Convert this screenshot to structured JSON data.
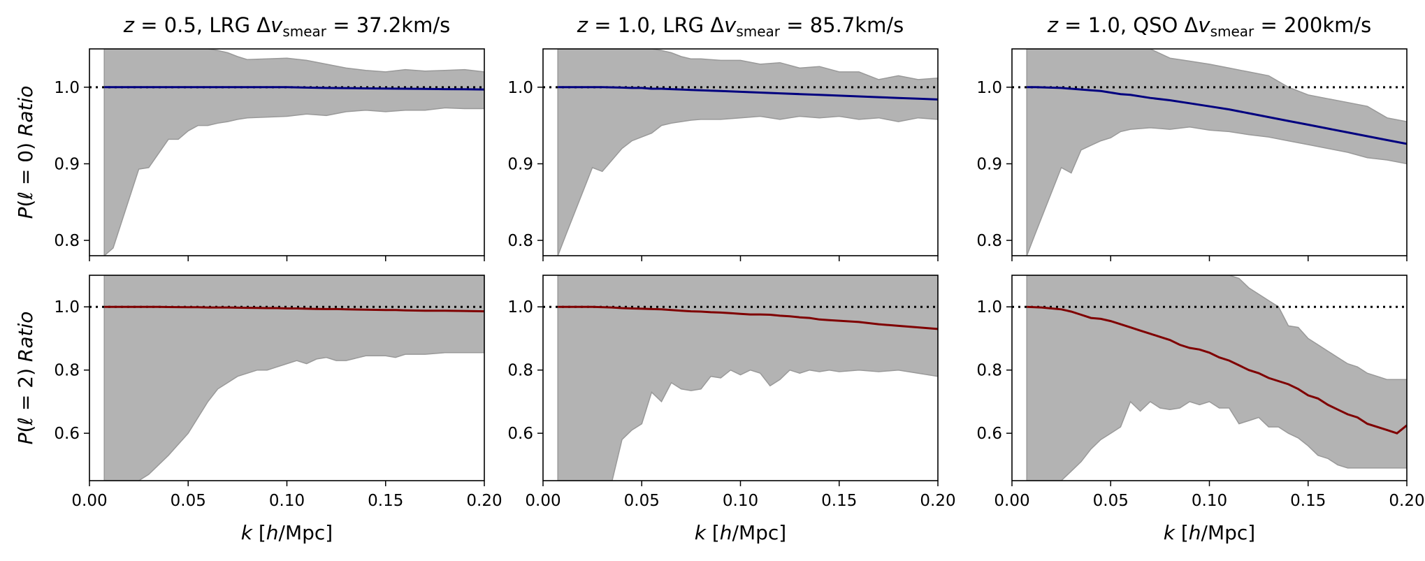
{
  "colors": {
    "band": "#b3b3b3",
    "band_edge": "#999999",
    "monopole_line": "#00007f",
    "quadrupole_line": "#7f0000",
    "reference_line": "#000000"
  },
  "chart_data": {
    "type": "line",
    "grid": false,
    "legend": "none",
    "x_label": {
      "var": "k",
      "rest": "[h/Mpc]"
    },
    "rows": [
      {
        "ylabel": {
          "pre": "P(",
          "var": "ℓ",
          "post": " = 0) Ratio"
        },
        "ylim": [
          0.78,
          1.05
        ],
        "yticks": [
          "0.8",
          "0.9",
          "1.0"
        ],
        "ytick_values": [
          0.8,
          0.9,
          1.0
        ]
      },
      {
        "ylabel": {
          "pre": "P(",
          "var": "ℓ",
          "post": " = 2) Ratio"
        },
        "ylim": [
          0.45,
          1.1
        ],
        "yticks": [
          "0.6",
          "0.8",
          "1.0"
        ],
        "ytick_values": [
          0.6,
          0.8,
          1.0
        ]
      }
    ],
    "xlim": [
      0.0,
      0.2
    ],
    "xticks": [
      "0.00",
      "0.05",
      "0.10",
      "0.15",
      "0.20"
    ],
    "xtick_values": [
      0.0,
      0.05,
      0.1,
      0.15,
      0.2
    ],
    "reference_value": 1.0,
    "columns": [
      {
        "title": {
          "z": "z = 0.5,",
          "tracer": "LRG",
          "dv": "Δv",
          "sub": "smear",
          "val": " = 37.2km/s"
        },
        "panels": [
          {
            "x": [
              0.0075,
              0.012,
              0.025,
              0.03,
              0.04,
              0.045,
              0.05,
              0.055,
              0.06,
              0.065,
              0.07,
              0.075,
              0.08,
              0.09,
              0.1,
              0.11,
              0.12,
              0.13,
              0.14,
              0.15,
              0.16,
              0.17,
              0.18,
              0.19,
              0.2
            ],
            "y": [
              1.0,
              1.0,
              1.0,
              1.0,
              1.0,
              1.0,
              1.0,
              1.0,
              1.0,
              1.0,
              1.0,
              1.0,
              1.0,
              1.0,
              1.0,
              0.9995,
              0.999,
              0.9988,
              0.9985,
              0.9982,
              0.998,
              0.9978,
              0.9975,
              0.9973,
              0.997
            ],
            "lower": [
              0.78,
              0.79,
              0.893,
              0.895,
              0.932,
              0.932,
              0.943,
              0.95,
              0.95,
              0.953,
              0.955,
              0.958,
              0.96,
              0.961,
              0.962,
              0.965,
              0.963,
              0.968,
              0.97,
              0.968,
              0.97,
              0.97,
              0.973,
              0.972,
              0.972
            ],
            "upper": [
              1.05,
              1.05,
              1.05,
              1.05,
              1.05,
              1.05,
              1.05,
              1.05,
              1.05,
              1.048,
              1.045,
              1.04,
              1.036,
              1.037,
              1.038,
              1.035,
              1.03,
              1.025,
              1.022,
              1.02,
              1.023,
              1.021,
              1.022,
              1.023,
              1.02
            ]
          },
          {
            "x": [
              0.0075,
              0.015,
              0.025,
              0.03,
              0.035,
              0.04,
              0.05,
              0.055,
              0.06,
              0.065,
              0.07,
              0.075,
              0.08,
              0.085,
              0.09,
              0.095,
              0.1,
              0.105,
              0.11,
              0.115,
              0.12,
              0.125,
              0.13,
              0.14,
              0.15,
              0.155,
              0.16,
              0.17,
              0.18,
              0.19,
              0.2
            ],
            "y": [
              1.0,
              1.0,
              1.0,
              1.0,
              1.0,
              0.9995,
              0.999,
              0.999,
              0.998,
              0.998,
              0.998,
              0.9975,
              0.997,
              0.9965,
              0.996,
              0.996,
              0.995,
              0.995,
              0.994,
              0.9935,
              0.993,
              0.993,
              0.992,
              0.991,
              0.99,
              0.99,
              0.989,
              0.988,
              0.988,
              0.987,
              0.986
            ],
            "lower": [
              0.45,
              0.45,
              0.45,
              0.47,
              0.5,
              0.53,
              0.6,
              0.65,
              0.7,
              0.74,
              0.76,
              0.78,
              0.79,
              0.8,
              0.8,
              0.81,
              0.82,
              0.83,
              0.82,
              0.835,
              0.84,
              0.83,
              0.83,
              0.845,
              0.845,
              0.84,
              0.85,
              0.85,
              0.855,
              0.855,
              0.855
            ],
            "upper": [
              1.1,
              1.1,
              1.1,
              1.1,
              1.1,
              1.1,
              1.1,
              1.1,
              1.1,
              1.1,
              1.1,
              1.1,
              1.1,
              1.1,
              1.1,
              1.1,
              1.1,
              1.1,
              1.1,
              1.1,
              1.1,
              1.1,
              1.1,
              1.1,
              1.1,
              1.1,
              1.1,
              1.1,
              1.1,
              1.1,
              1.1
            ]
          }
        ]
      },
      {
        "title": {
          "z": "z = 1.0,",
          "tracer": "LRG",
          "dv": "Δv",
          "sub": "smear",
          "val": " = 85.7km/s"
        },
        "panels": [
          {
            "x": [
              0.0075,
              0.012,
              0.025,
              0.03,
              0.04,
              0.045,
              0.05,
              0.055,
              0.06,
              0.065,
              0.07,
              0.075,
              0.08,
              0.09,
              0.1,
              0.11,
              0.12,
              0.13,
              0.14,
              0.15,
              0.16,
              0.17,
              0.18,
              0.19,
              0.2
            ],
            "y": [
              1.0,
              1.0,
              1.0,
              1.0,
              0.9995,
              0.999,
              0.999,
              0.998,
              0.998,
              0.9975,
              0.997,
              0.9965,
              0.996,
              0.995,
              0.994,
              0.993,
              0.992,
              0.991,
              0.99,
              0.989,
              0.988,
              0.987,
              0.986,
              0.985,
              0.984
            ],
            "lower": [
              0.78,
              0.81,
              0.895,
              0.89,
              0.92,
              0.93,
              0.935,
              0.94,
              0.95,
              0.953,
              0.955,
              0.957,
              0.958,
              0.958,
              0.96,
              0.962,
              0.958,
              0.962,
              0.96,
              0.962,
              0.958,
              0.96,
              0.955,
              0.96,
              0.958
            ],
            "upper": [
              1.05,
              1.05,
              1.05,
              1.05,
              1.05,
              1.05,
              1.05,
              1.05,
              1.048,
              1.045,
              1.04,
              1.037,
              1.037,
              1.035,
              1.035,
              1.03,
              1.032,
              1.025,
              1.027,
              1.02,
              1.02,
              1.01,
              1.015,
              1.01,
              1.012
            ]
          },
          {
            "x": [
              0.0075,
              0.015,
              0.025,
              0.035,
              0.04,
              0.045,
              0.05,
              0.055,
              0.06,
              0.065,
              0.07,
              0.075,
              0.08,
              0.085,
              0.09,
              0.095,
              0.1,
              0.105,
              0.11,
              0.115,
              0.12,
              0.125,
              0.13,
              0.135,
              0.14,
              0.145,
              0.15,
              0.16,
              0.17,
              0.18,
              0.19,
              0.2
            ],
            "y": [
              1.0,
              1.0,
              1.0,
              0.998,
              0.996,
              0.995,
              0.994,
              0.993,
              0.992,
              0.99,
              0.988,
              0.986,
              0.985,
              0.983,
              0.982,
              0.98,
              0.978,
              0.976,
              0.976,
              0.975,
              0.972,
              0.97,
              0.967,
              0.965,
              0.96,
              0.958,
              0.956,
              0.952,
              0.945,
              0.94,
              0.935,
              0.93
            ],
            "lower": [
              0.45,
              0.45,
              0.45,
              0.45,
              0.58,
              0.61,
              0.63,
              0.73,
              0.7,
              0.76,
              0.74,
              0.735,
              0.74,
              0.78,
              0.775,
              0.8,
              0.785,
              0.8,
              0.79,
              0.75,
              0.77,
              0.8,
              0.79,
              0.8,
              0.795,
              0.8,
              0.795,
              0.8,
              0.795,
              0.8,
              0.79,
              0.78
            ],
            "upper": [
              1.1,
              1.1,
              1.1,
              1.1,
              1.1,
              1.1,
              1.1,
              1.1,
              1.1,
              1.1,
              1.1,
              1.1,
              1.1,
              1.1,
              1.1,
              1.1,
              1.1,
              1.1,
              1.1,
              1.1,
              1.1,
              1.1,
              1.1,
              1.1,
              1.1,
              1.1,
              1.1,
              1.1,
              1.1,
              1.1,
              1.1,
              1.1
            ]
          }
        ]
      },
      {
        "title": {
          "z": "z = 1.0,",
          "tracer": "QSO",
          "dv": "Δv",
          "sub": "smear",
          "val": " = 200km/s"
        },
        "panels": [
          {
            "x": [
              0.0075,
              0.012,
              0.025,
              0.03,
              0.035,
              0.04,
              0.045,
              0.05,
              0.055,
              0.06,
              0.07,
              0.08,
              0.09,
              0.1,
              0.11,
              0.12,
              0.13,
              0.14,
              0.15,
              0.16,
              0.17,
              0.18,
              0.19,
              0.2
            ],
            "y": [
              1.0,
              1.0,
              0.999,
              0.998,
              0.997,
              0.996,
              0.995,
              0.993,
              0.991,
              0.99,
              0.986,
              0.983,
              0.979,
              0.975,
              0.971,
              0.966,
              0.961,
              0.956,
              0.951,
              0.946,
              0.941,
              0.936,
              0.931,
              0.926
            ],
            "lower": [
              0.78,
              0.81,
              0.895,
              0.888,
              0.918,
              0.924,
              0.93,
              0.934,
              0.942,
              0.945,
              0.947,
              0.945,
              0.948,
              0.944,
              0.942,
              0.938,
              0.935,
              0.93,
              0.925,
              0.92,
              0.915,
              0.908,
              0.905,
              0.9
            ],
            "upper": [
              1.05,
              1.05,
              1.05,
              1.05,
              1.05,
              1.05,
              1.05,
              1.05,
              1.05,
              1.05,
              1.05,
              1.038,
              1.034,
              1.03,
              1.025,
              1.02,
              1.015,
              1.0,
              0.99,
              0.985,
              0.98,
              0.975,
              0.96,
              0.955
            ]
          },
          {
            "x": [
              0.0075,
              0.015,
              0.025,
              0.03,
              0.035,
              0.04,
              0.045,
              0.05,
              0.055,
              0.06,
              0.065,
              0.07,
              0.075,
              0.08,
              0.085,
              0.09,
              0.095,
              0.1,
              0.105,
              0.11,
              0.115,
              0.12,
              0.125,
              0.13,
              0.135,
              0.14,
              0.145,
              0.15,
              0.155,
              0.16,
              0.165,
              0.17,
              0.175,
              0.18,
              0.185,
              0.19,
              0.195,
              0.2
            ],
            "y": [
              1.0,
              0.998,
              0.992,
              0.985,
              0.975,
              0.965,
              0.962,
              0.955,
              0.945,
              0.935,
              0.925,
              0.915,
              0.905,
              0.895,
              0.88,
              0.87,
              0.865,
              0.855,
              0.84,
              0.83,
              0.815,
              0.8,
              0.79,
              0.775,
              0.765,
              0.755,
              0.74,
              0.72,
              0.71,
              0.69,
              0.675,
              0.66,
              0.65,
              0.63,
              0.62,
              0.61,
              0.6,
              0.625
            ],
            "lower": [
              0.45,
              0.45,
              0.45,
              0.48,
              0.51,
              0.55,
              0.58,
              0.6,
              0.62,
              0.7,
              0.67,
              0.7,
              0.68,
              0.675,
              0.68,
              0.7,
              0.69,
              0.7,
              0.68,
              0.68,
              0.63,
              0.64,
              0.65,
              0.62,
              0.62,
              0.6,
              0.585,
              0.56,
              0.53,
              0.52,
              0.5,
              0.49,
              0.49,
              0.49,
              0.49,
              0.49,
              0.49,
              0.49
            ],
            "upper": [
              1.1,
              1.1,
              1.1,
              1.1,
              1.1,
              1.1,
              1.1,
              1.1,
              1.1,
              1.1,
              1.1,
              1.1,
              1.1,
              1.1,
              1.1,
              1.1,
              1.1,
              1.1,
              1.1,
              1.1,
              1.09,
              1.06,
              1.04,
              1.02,
              1.0,
              0.94,
              0.935,
              0.9,
              0.88,
              0.86,
              0.84,
              0.82,
              0.81,
              0.79,
              0.78,
              0.77,
              0.77,
              0.77
            ]
          }
        ]
      }
    ]
  }
}
